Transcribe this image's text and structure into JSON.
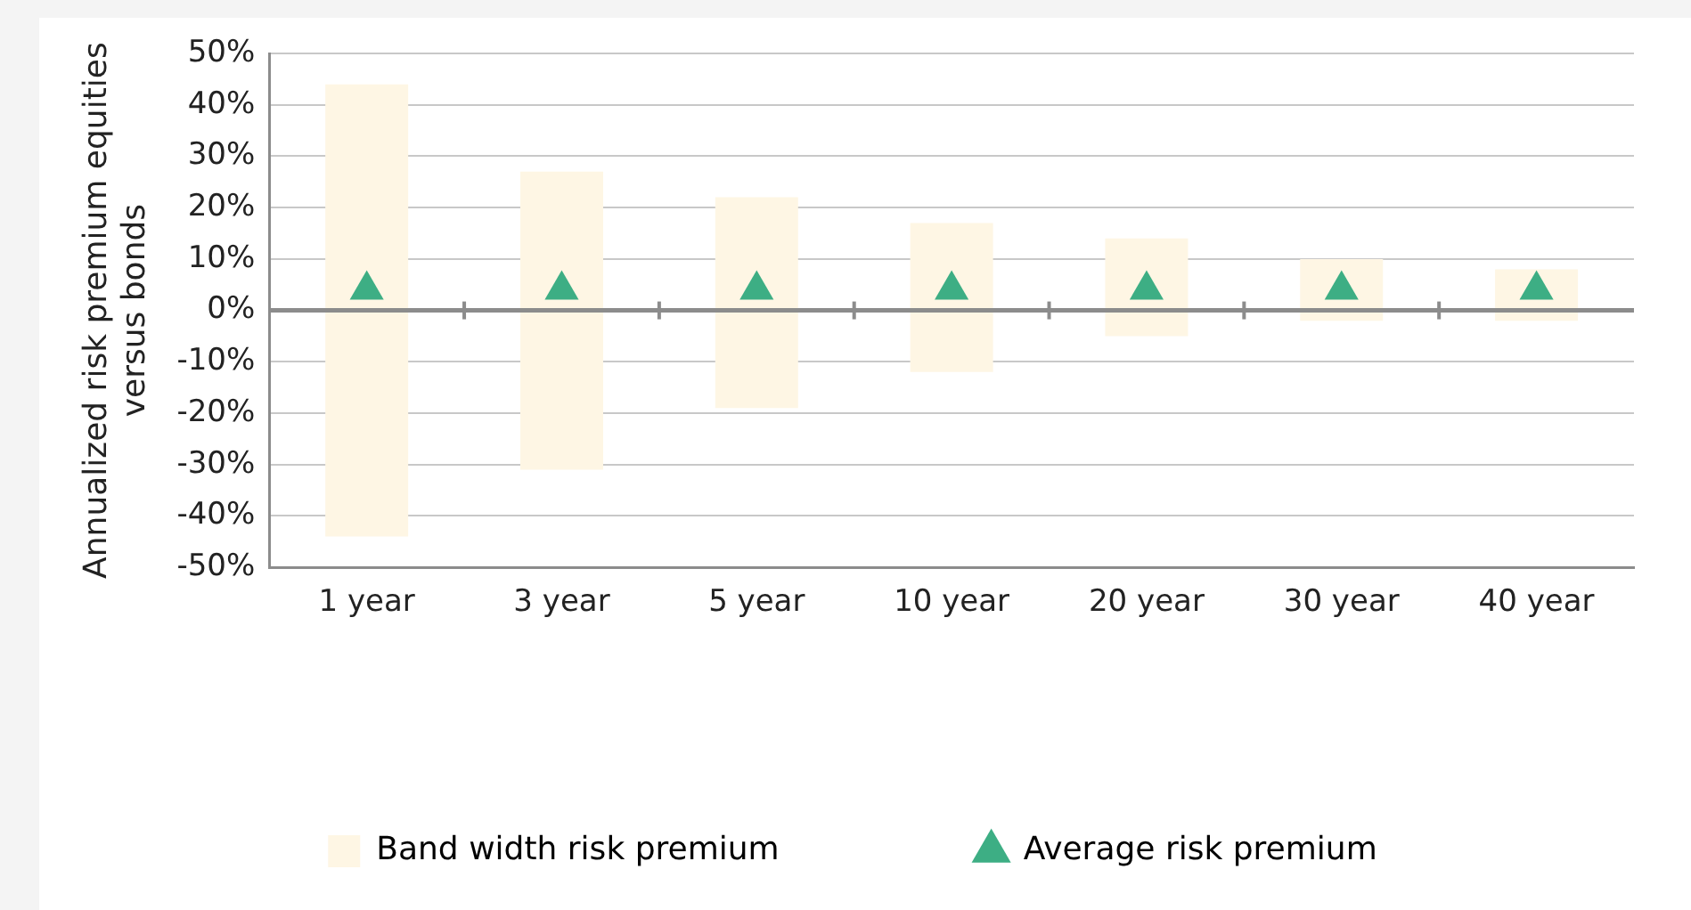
{
  "chart_data": {
    "type": "bar",
    "ylabel": "Annualized risk premium equities versus bonds",
    "categories": [
      "1 year",
      "3 year",
      "5 year",
      "10 year",
      "20 year",
      "30 year",
      "40 year"
    ],
    "ylim": [
      -50,
      50
    ],
    "yticks": [
      {
        "value": -50,
        "label": "-50%"
      },
      {
        "value": -40,
        "label": "-40%"
      },
      {
        "value": -30,
        "label": "-30%"
      },
      {
        "value": -20,
        "label": "-20%"
      },
      {
        "value": -10,
        "label": "-10%"
      },
      {
        "value": 0,
        "label": "0%"
      },
      {
        "value": 10,
        "label": "10%"
      },
      {
        "value": 20,
        "label": "20%"
      },
      {
        "value": 30,
        "label": "30%"
      },
      {
        "value": 40,
        "label": "40%"
      },
      {
        "value": 50,
        "label": "50%"
      }
    ],
    "grid": "y",
    "legend": "bottom",
    "marker": "triangle",
    "series": [
      {
        "name": "Band width risk premium",
        "color": "#fef6e4",
        "base": [
          -44,
          -31,
          -19,
          -12,
          -5,
          -2,
          -2
        ],
        "values": [
          88,
          58,
          41,
          29,
          19,
          12,
          10
        ]
      },
      {
        "name": "Average risk premium",
        "type": "scatter",
        "color": "#3dae84",
        "x": [
          "1 year",
          "3 year",
          "5 year",
          "10 year",
          "20 year",
          "30 year",
          "40 year"
        ],
        "values": [
          4,
          4,
          4,
          4,
          4,
          4,
          4
        ]
      }
    ]
  }
}
